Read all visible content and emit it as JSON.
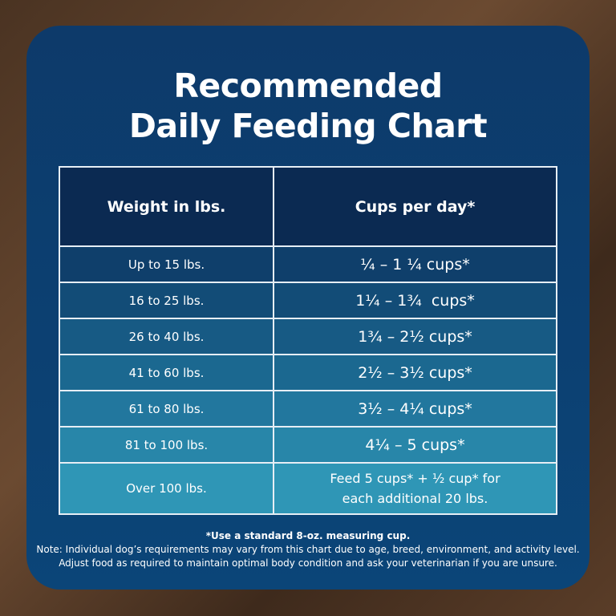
{
  "title": {
    "line1": "Recommended",
    "line2": "Daily Feeding Chart"
  },
  "table": {
    "headers": [
      "Weight in lbs.",
      "Cups per day*"
    ],
    "rows": [
      {
        "weight": "Up to 15 lbs.",
        "cups": "¼ – 1 ¼ cups*"
      },
      {
        "weight": "16 to 25 lbs.",
        "cups": "1¼ – 1¾  cups*"
      },
      {
        "weight": "26 to 40 lbs.",
        "cups": "1¾ – 2½ cups*"
      },
      {
        "weight": "41 to 60 lbs.",
        "cups": "2½ – 3½ cups*"
      },
      {
        "weight": "61 to 80 lbs.",
        "cups": "3½ – 4¼ cups*"
      },
      {
        "weight": "81 to 100 lbs.",
        "cups": "4¼ – 5 cups*"
      },
      {
        "weight": "Over 100 lbs.",
        "cups_line1": "Feed 5 cups* + ½ cup* for",
        "cups_line2": "each additional 20 lbs."
      }
    ],
    "row_colors": [
      "#0f3f6b",
      "#124c77",
      "#175a84",
      "#1b6890",
      "#22779e",
      "#2886a9",
      "#2f96b6"
    ]
  },
  "notes": {
    "measuring": "*Use a standard 8-oz. measuring cup.",
    "line1": "Note: Individual dog’s requirements may vary from this chart due to age, breed, environment, and activity level.",
    "line2": "Adjust food as required to maintain optimal body condition and ask your veterinarian if you are unsure."
  }
}
